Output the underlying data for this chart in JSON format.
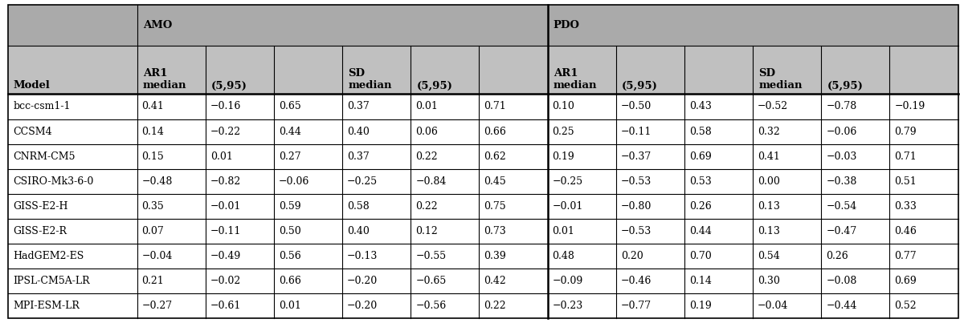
{
  "models": [
    "bcc-csm1-1",
    "CCSM4",
    "CNRM-CM5",
    "CSIRO-Mk3-6-0",
    "GISS-E2-H",
    "GISS-E2-R",
    "HadGEM2-ES",
    "IPSL-CM5A-LR",
    "MPI-ESM-LR"
  ],
  "data": [
    [
      "0.41",
      "−0.16",
      "0.65",
      "0.37",
      "0.01",
      "0.71",
      "0.10",
      "−0.50",
      "0.43",
      "−0.52",
      "−0.78",
      "−0.19"
    ],
    [
      "0.14",
      "−0.22",
      "0.44",
      "0.40",
      "0.06",
      "0.66",
      "0.25",
      "−0.11",
      "0.58",
      "0.32",
      "−0.06",
      "0.79"
    ],
    [
      "0.15",
      "0.01",
      "0.27",
      "0.37",
      "0.22",
      "0.62",
      "0.19",
      "−0.37",
      "0.69",
      "0.41",
      "−0.03",
      "0.71"
    ],
    [
      "−0.48",
      "−0.82",
      "−0.06",
      "−0.25",
      "−0.84",
      "0.45",
      "−0.25",
      "−0.53",
      "0.53",
      "0.00",
      "−0.38",
      "0.51"
    ],
    [
      "0.35",
      "−0.01",
      "0.59",
      "0.58",
      "0.22",
      "0.75",
      "−0.01",
      "−0.80",
      "0.26",
      "0.13",
      "−0.54",
      "0.33"
    ],
    [
      "0.07",
      "−0.11",
      "0.50",
      "0.40",
      "0.12",
      "0.73",
      "0.01",
      "−0.53",
      "0.44",
      "0.13",
      "−0.47",
      "0.46"
    ],
    [
      "−0.04",
      "−0.49",
      "0.56",
      "−0.13",
      "−0.55",
      "0.39",
      "0.48",
      "0.20",
      "0.70",
      "0.54",
      "0.26",
      "0.77"
    ],
    [
      "0.21",
      "−0.02",
      "0.66",
      "−0.20",
      "−0.65",
      "0.42",
      "−0.09",
      "−0.46",
      "0.14",
      "0.30",
      "−0.08",
      "0.69"
    ],
    [
      "−0.27",
      "−0.61",
      "0.01",
      "−0.20",
      "−0.56",
      "0.22",
      "−0.23",
      "−0.77",
      "0.19",
      "−0.04",
      "−0.44",
      "0.52"
    ]
  ],
  "header_bg": "#aaaaaa",
  "subheader_bg": "#c0c0c0",
  "row_bg": "#ffffff",
  "border_color": "#000000",
  "text_color": "#000000",
  "font_size": 9.0,
  "header_font_size": 9.5
}
